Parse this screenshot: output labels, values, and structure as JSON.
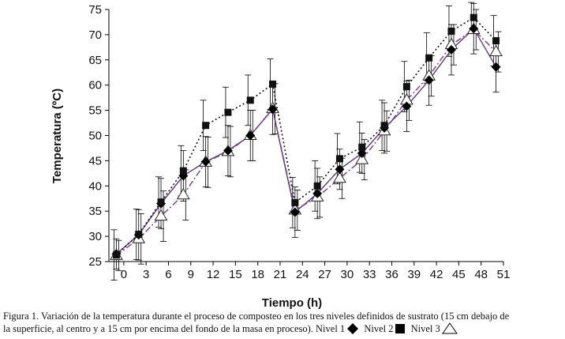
{
  "chart_data": {
    "type": "line",
    "xlabel": "Tiempo (h)",
    "ylabel": "Temperatura (ºC)",
    "ylim": [
      25,
      75
    ],
    "yticks": [
      25,
      30,
      35,
      40,
      45,
      50,
      55,
      60,
      65,
      70,
      75
    ],
    "xticks": [
      0,
      3,
      6,
      9,
      12,
      15,
      18,
      21,
      24,
      27,
      30,
      33,
      36,
      39,
      42,
      45,
      48,
      51
    ],
    "xlim": [
      -2,
      51
    ],
    "grid": false,
    "series": [
      {
        "name": "Nivel 1",
        "marker": "diamond",
        "line": "solid",
        "color": "#5a3a7a",
        "x": [
          -1,
          2,
          5,
          8,
          11,
          14,
          17,
          20,
          23,
          26,
          29,
          32,
          35,
          38,
          41,
          44,
          47,
          50
        ],
        "values": [
          26.5,
          30.3,
          36.5,
          42.0,
          44.8,
          47.0,
          50.0,
          55.2,
          34.8,
          38.5,
          43.3,
          46.5,
          51.5,
          55.8,
          61.0,
          67.0,
          71.2,
          63.6
        ],
        "err": [
          3,
          5,
          5,
          5,
          5,
          5,
          5,
          5,
          5,
          5,
          4,
          4,
          5,
          5,
          5,
          5,
          5,
          5
        ]
      },
      {
        "name": "Nivel 2",
        "marker": "square",
        "line": "dotted",
        "color": "#111111",
        "x": [
          -1,
          2,
          5,
          8,
          11,
          14,
          17,
          20,
          23,
          26,
          29,
          32,
          35,
          38,
          41,
          44,
          47,
          50
        ],
        "values": [
          26.3,
          30.4,
          36.8,
          43.0,
          52.0,
          54.6,
          57.0,
          60.2,
          36.7,
          40.0,
          45.4,
          47.7,
          52.0,
          59.7,
          65.4,
          70.7,
          73.4,
          68.8
        ],
        "err": [
          5,
          5,
          5,
          5,
          5,
          5,
          5,
          5,
          5,
          5,
          5,
          5,
          5,
          5,
          5,
          5,
          3,
          5
        ]
      },
      {
        "name": "Nivel 3",
        "marker": "triangle",
        "line": "dashdot",
        "color": "#7a3c8c",
        "x": [
          -1,
          2,
          5,
          8,
          11,
          14,
          17,
          20,
          23,
          26,
          29,
          32,
          35,
          38,
          41,
          44,
          47,
          50
        ],
        "values": [
          26.2,
          29.5,
          34.0,
          38.2,
          44.7,
          46.8,
          50.0,
          55.3,
          35.2,
          37.8,
          41.5,
          45.2,
          50.9,
          57.0,
          61.8,
          68.0,
          71.0,
          66.6
        ],
        "err": [
          3,
          5,
          5,
          5,
          5,
          5,
          5,
          5,
          4,
          4,
          4,
          4,
          4,
          4,
          4,
          4,
          4,
          4
        ]
      }
    ]
  },
  "caption": {
    "line1": "Figura 1. Variación de la temperatura durante el  proceso de composteo en los tres niveles definidos de sustrato (15 cm debajo de",
    "line2_prefix": "la superficie,  al centro y a 15 cm por encima del fondo de la masa en proceso). ",
    "legend": [
      {
        "label": "Nivel 1",
        "icon": "diamond-icon"
      },
      {
        "label": "Nivel 2",
        "icon": "square-icon"
      },
      {
        "label": "Nivel 3",
        "icon": "triangle-icon"
      }
    ]
  }
}
